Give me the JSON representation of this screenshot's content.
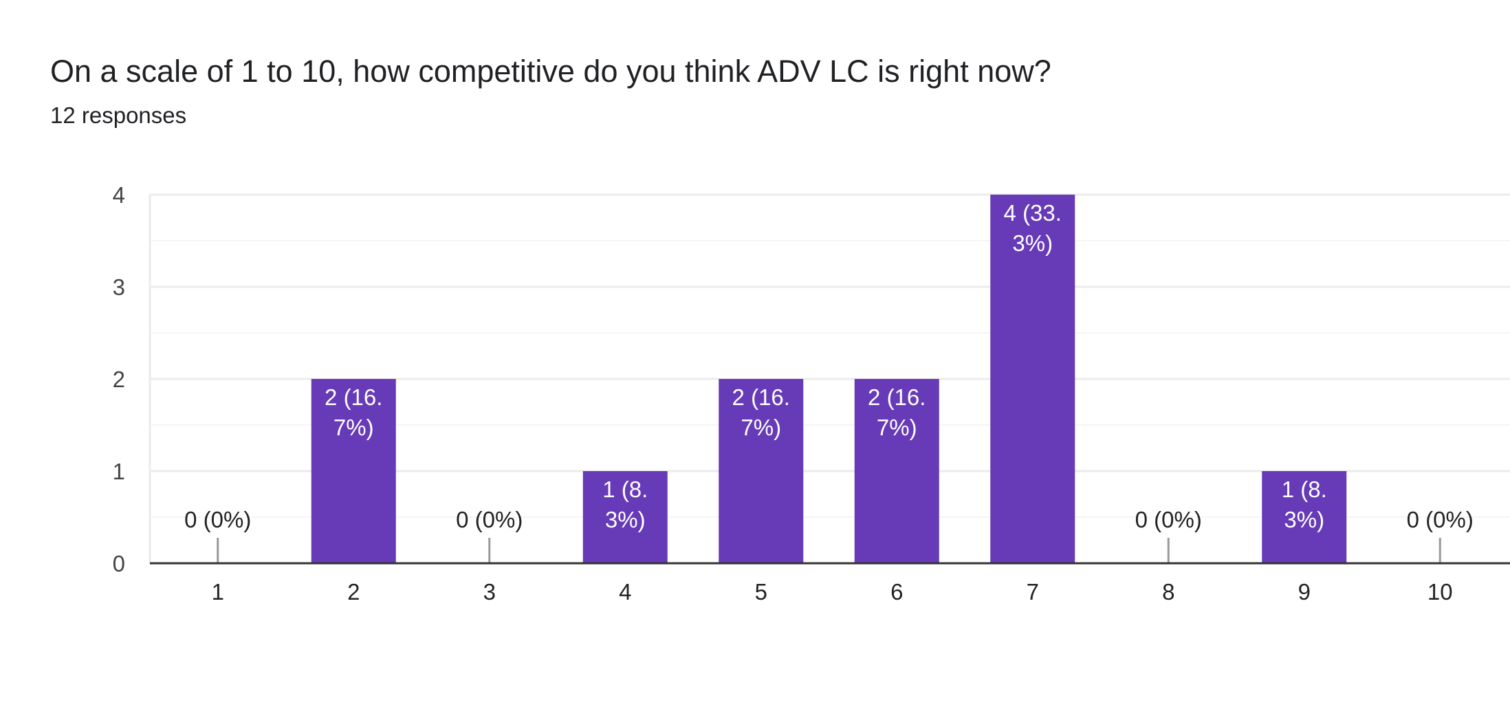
{
  "question": {
    "title": "On a scale of 1 to 10, how competitive do you think ADV LC is right now?",
    "responses": "12 responses"
  },
  "colors": {
    "bar": "#673ab7",
    "gridline": "#ebebeb",
    "minor_gridline": "#f5f5f5",
    "axis": "#333333",
    "zero_marker": "#999999",
    "label_inside": "#ffffff",
    "label_outside": "#222222"
  },
  "chart_data": {
    "type": "bar",
    "title": "On a scale of 1 to 10, how competitive do you think ADV LC is right now?",
    "categories": [
      "1",
      "2",
      "3",
      "4",
      "5",
      "6",
      "7",
      "8",
      "9",
      "10"
    ],
    "values": [
      0,
      2,
      0,
      1,
      2,
      2,
      4,
      0,
      1,
      0
    ],
    "data_labels": [
      [
        "0 (0%)"
      ],
      [
        "2 (16.",
        "7%)"
      ],
      [
        "0 (0%)"
      ],
      [
        "1 (8.",
        "3%)"
      ],
      [
        "2 (16.",
        "7%)"
      ],
      [
        "2 (16.",
        "7%)"
      ],
      [
        "4 (33.",
        "3%)"
      ],
      [
        "0 (0%)"
      ],
      [
        "1 (8.",
        "3%)"
      ],
      [
        "0 (0%)"
      ]
    ],
    "yticks": [
      "0",
      "1",
      "2",
      "3",
      "4"
    ],
    "ylim": [
      0,
      4
    ],
    "xlabel": "",
    "ylabel": "",
    "grid": true
  }
}
